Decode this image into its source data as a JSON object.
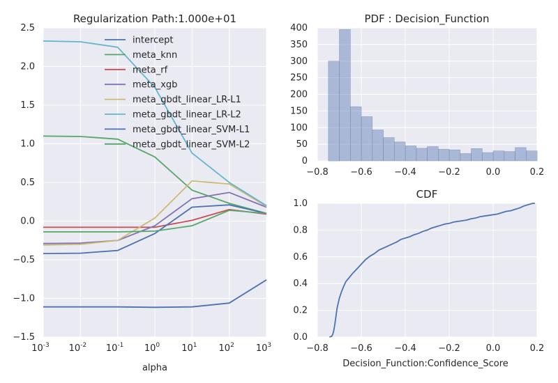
{
  "chart_data": [
    {
      "type": "line",
      "title": "Regularization Path:1.000e+01",
      "xlabel": "alpha",
      "ylabel": "",
      "xscale": "log",
      "x": [
        0.001,
        0.01,
        0.1,
        1,
        10,
        100,
        1000
      ],
      "xlim": [
        0.001,
        1000
      ],
      "ylim": [
        -1.5,
        2.5
      ],
      "xticks": [
        "-3",
        "-2",
        "-1",
        "0",
        "1",
        "2",
        "3"
      ],
      "xtick_base": "10",
      "yticks": [
        "−1.5",
        "−1.0",
        "−0.5",
        "0.0",
        "0.5",
        "1.0",
        "1.5",
        "2.0",
        "2.5"
      ],
      "ytick_values": [
        -1.5,
        -1.0,
        -0.5,
        0.0,
        0.5,
        1.0,
        1.5,
        2.0,
        2.5
      ],
      "grid": true,
      "legend_position": "top-right",
      "series": [
        {
          "name": "intercept",
          "color": "#4c72b0",
          "values": [
            -1.11,
            -1.11,
            -1.11,
            -1.115,
            -1.11,
            -1.06,
            -0.76
          ]
        },
        {
          "name": "meta_knn",
          "color": "#55a868",
          "values": [
            1.1,
            1.095,
            1.06,
            0.83,
            0.4,
            0.23,
            0.1
          ]
        },
        {
          "name": "meta_rf",
          "color": "#c44e52",
          "values": [
            -0.08,
            -0.08,
            -0.08,
            -0.08,
            0.01,
            0.15,
            0.09
          ]
        },
        {
          "name": "meta_xgb",
          "color": "#8172b2",
          "values": [
            -0.29,
            -0.285,
            -0.25,
            -0.06,
            0.29,
            0.37,
            0.18
          ]
        },
        {
          "name": "meta_gbdt_linear_LR-L1",
          "color": "#ccb974",
          "values": [
            -0.31,
            -0.3,
            -0.25,
            0.04,
            0.52,
            0.48,
            0.19
          ]
        },
        {
          "name": "meta_gbdt_linear_LR-L2",
          "color": "#64b5cd",
          "values": [
            2.33,
            2.32,
            2.25,
            1.73,
            0.88,
            0.5,
            0.2
          ]
        },
        {
          "name": "meta_gbdt_linear_SVM-L1",
          "color": "#4c72b0",
          "values": [
            -0.42,
            -0.415,
            -0.38,
            -0.16,
            0.18,
            0.21,
            0.1
          ]
        },
        {
          "name": "meta_gbdt_linear_SVM-L2",
          "color": "#55a868",
          "values": [
            -0.14,
            -0.14,
            -0.14,
            -0.13,
            -0.06,
            0.14,
            0.1
          ]
        }
      ]
    },
    {
      "type": "bar",
      "title": "PDF : Decision_Function",
      "xlabel": "",
      "ylabel": "",
      "color": "#4c72b0",
      "bin_edges": [
        -0.75,
        -0.7,
        -0.65,
        -0.6,
        -0.55,
        -0.5,
        -0.45,
        -0.4,
        -0.35,
        -0.3,
        -0.25,
        -0.2,
        -0.15,
        -0.1,
        -0.05,
        0.0,
        0.05,
        0.1,
        0.15,
        0.2
      ],
      "values": [
        300,
        395,
        163,
        133,
        93,
        70,
        57,
        45,
        38,
        43,
        35,
        33,
        22,
        37,
        25,
        30,
        28,
        40,
        30
      ],
      "xlim": [
        -0.8,
        0.2
      ],
      "ylim": [
        0,
        400
      ],
      "xticks": [
        "−0.8",
        "−0.6",
        "−0.4",
        "−0.2",
        "0.0",
        "0.2"
      ],
      "xtick_values": [
        -0.8,
        -0.6,
        -0.4,
        -0.2,
        0.0,
        0.2
      ],
      "yticks": [
        "0",
        "50",
        "100",
        "150",
        "200",
        "250",
        "300",
        "350",
        "400"
      ],
      "ytick_values": [
        0,
        50,
        100,
        150,
        200,
        250,
        300,
        350,
        400
      ],
      "grid": true
    },
    {
      "type": "line",
      "title": "CDF",
      "xlabel": "Decision_Function:Confidence_Score",
      "ylabel": "",
      "color": "#4c72b0",
      "x": [
        -0.745,
        -0.735,
        -0.73,
        -0.725,
        -0.72,
        -0.715,
        -0.71,
        -0.7,
        -0.69,
        -0.68,
        -0.67,
        -0.66,
        -0.65,
        -0.64,
        -0.62,
        -0.6,
        -0.58,
        -0.56,
        -0.54,
        -0.52,
        -0.5,
        -0.48,
        -0.46,
        -0.44,
        -0.42,
        -0.4,
        -0.38,
        -0.36,
        -0.34,
        -0.32,
        -0.3,
        -0.28,
        -0.26,
        -0.24,
        -0.22,
        -0.2,
        -0.18,
        -0.16,
        -0.14,
        -0.12,
        -0.1,
        -0.08,
        -0.06,
        -0.04,
        -0.02,
        0.0,
        0.02,
        0.04,
        0.06,
        0.08,
        0.1,
        0.12,
        0.14,
        0.16,
        0.18,
        0.19
      ],
      "y": [
        0.0,
        0.005,
        0.02,
        0.05,
        0.1,
        0.16,
        0.22,
        0.29,
        0.34,
        0.38,
        0.415,
        0.435,
        0.455,
        0.475,
        0.51,
        0.545,
        0.58,
        0.605,
        0.625,
        0.65,
        0.665,
        0.68,
        0.695,
        0.71,
        0.73,
        0.74,
        0.75,
        0.765,
        0.775,
        0.79,
        0.8,
        0.815,
        0.825,
        0.835,
        0.845,
        0.85,
        0.86,
        0.865,
        0.87,
        0.875,
        0.885,
        0.89,
        0.9,
        0.905,
        0.91,
        0.915,
        0.92,
        0.93,
        0.94,
        0.945,
        0.955,
        0.965,
        0.98,
        0.99,
        1.0,
        1.0
      ],
      "xlim": [
        -0.8,
        0.2
      ],
      "ylim": [
        0,
        1.0
      ],
      "xticks": [
        "−0.8",
        "−0.6",
        "−0.4",
        "−0.2",
        "0.0",
        "0.2"
      ],
      "xtick_values": [
        -0.8,
        -0.6,
        -0.4,
        -0.2,
        0.0,
        0.2
      ],
      "yticks": [
        "0.0",
        "0.2",
        "0.4",
        "0.6",
        "0.8",
        "1.0"
      ],
      "ytick_values": [
        0.0,
        0.2,
        0.4,
        0.6,
        0.8,
        1.0
      ],
      "grid": true
    }
  ]
}
